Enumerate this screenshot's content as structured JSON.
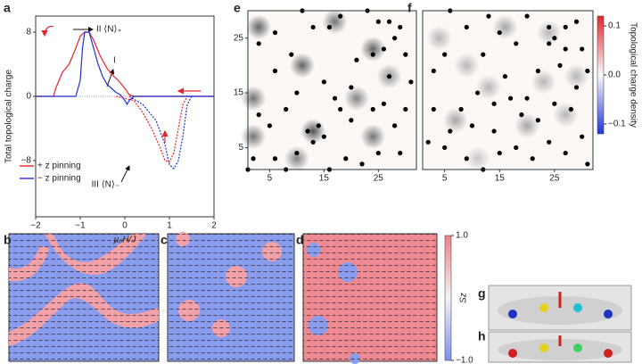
{
  "chart_data": [
    {
      "type": "line",
      "panel": "a",
      "xlabel": "μ₀H/J",
      "ylabel": "Total topological charge",
      "xlim": [
        -2,
        2
      ],
      "xticks": [
        {
          "value": -2,
          "label": "−2"
        },
        {
          "value": -1,
          "label": "−1"
        },
        0,
        1,
        2
      ],
      "ylim": [
        -15,
        10
      ],
      "yticks": [
        {
          "value": -8,
          "label": "−8"
        },
        0,
        8
      ],
      "series": [
        {
          "name": "+ z pinning",
          "color": "#e8242a",
          "x": [
            -2,
            -1.6,
            -1.55,
            -1.4,
            -1.25,
            -1.1,
            -1.0,
            -0.9,
            -0.8,
            -0.7,
            -0.55,
            -0.4,
            -0.25,
            -0.15,
            0,
            0.1,
            0.2,
            2
          ],
          "values": [
            0,
            0,
            1,
            3,
            4,
            6,
            7.5,
            8,
            8,
            7,
            5,
            3.5,
            2.5,
            2,
            1,
            0.2,
            0,
            0
          ],
          "branch_x": [
            -0.2,
            0.2,
            0.4,
            0.6,
            0.8,
            0.9,
            1.0,
            1.1,
            1.2,
            1.3,
            1.4
          ],
          "branch_values": [
            0,
            -0.5,
            -2,
            -4,
            -6.5,
            -8,
            -8.2,
            -7,
            -4,
            -1,
            0
          ]
        },
        {
          "name": "− z pinning",
          "color": "#1f2fd6",
          "x": [
            -2,
            -1.1,
            -1.0,
            -0.95,
            -0.9,
            -0.8,
            -0.7,
            -0.6,
            -0.5,
            -0.4,
            -0.3,
            -0.2,
            -0.1,
            0,
            0.05,
            0.1,
            0.2,
            2
          ],
          "values": [
            0,
            0,
            2,
            6,
            8,
            8,
            6,
            4,
            2.5,
            1.5,
            1,
            0.5,
            0.2,
            -0.5,
            -1,
            -0.5,
            0,
            0
          ],
          "branch_x": [
            0.1,
            0.4,
            0.7,
            0.9,
            1.0,
            1.1,
            1.2,
            1.3,
            1.4,
            1.5
          ],
          "branch_values": [
            0,
            -1,
            -3,
            -6,
            -8.5,
            -9,
            -8,
            -5,
            -1,
            0
          ]
        }
      ],
      "annotations": [
        "II ⟨N⟩₊",
        "I",
        "III ⟨N⟩₋"
      ]
    },
    {
      "type": "scatter",
      "panel": "e",
      "xlim": [
        1,
        32
      ],
      "ylim": [
        1,
        30
      ],
      "xticks": [
        5,
        15,
        25
      ],
      "yticks": [
        5,
        15,
        25
      ],
      "color": "#000000",
      "peak_color": "#e8242a",
      "x": [
        3,
        6,
        11,
        13,
        16,
        18,
        23,
        25,
        27,
        29,
        28,
        30,
        26,
        24,
        21,
        9,
        6,
        15,
        10,
        8,
        3,
        5,
        2,
        6,
        10,
        12,
        14,
        15,
        13,
        18,
        20,
        24,
        26,
        28,
        30,
        31,
        29,
        25,
        22,
        19,
        16,
        8,
        1,
        20,
        17,
        27
      ],
      "values": [
        24,
        26,
        30,
        27,
        27,
        29,
        30,
        28,
        28,
        27,
        25,
        22,
        23,
        22,
        21,
        22,
        19,
        17,
        15,
        12,
        11,
        9,
        3,
        3,
        4,
        8,
        9,
        7,
        6,
        12,
        10,
        12,
        13,
        9,
        12,
        17,
        4,
        4,
        2,
        3,
        1,
        1,
        1,
        16,
        14,
        18
      ],
      "peaks": {
        "x": [
          3,
          2,
          2,
          11,
          13,
          17,
          24,
          21,
          24,
          10,
          27
        ],
        "y": [
          27,
          14,
          7,
          20,
          8,
          28,
          23,
          14,
          7,
          3,
          18
        ],
        "values": [
          0.09,
          0.08,
          0.08,
          0.09,
          0.1,
          0.08,
          0.09,
          0.07,
          0.08,
          0.07,
          0.06
        ]
      }
    },
    {
      "type": "scatter",
      "panel": "f",
      "xlim": [
        1,
        32
      ],
      "ylim": [
        1,
        30
      ],
      "xticks": [
        5,
        15,
        25
      ],
      "color": "#000000",
      "peak_color": "#3a4fe0",
      "x": [
        6,
        9,
        13,
        15,
        18,
        20,
        24,
        25,
        27,
        29,
        30,
        27,
        24,
        12,
        16,
        22,
        26,
        29,
        31,
        28,
        25,
        22,
        19,
        17,
        14,
        11,
        8,
        3,
        6,
        2,
        5,
        9,
        12,
        15,
        18,
        21,
        24,
        27,
        30,
        31,
        10,
        14,
        20,
        3,
        5
      ],
      "values": [
        30,
        27,
        29,
        26,
        24,
        29,
        27,
        25,
        27,
        28,
        23,
        23,
        24,
        22,
        18,
        19,
        20,
        16,
        19,
        12,
        13,
        10,
        11,
        14,
        13,
        15,
        12,
        12,
        8,
        6,
        5,
        3,
        1,
        4,
        5,
        3,
        6,
        4,
        7,
        2,
        9,
        8,
        14,
        19,
        22
      ],
      "peaks": {
        "x": [
          4,
          9,
          16,
          24,
          29,
          7,
          13,
          20,
          27,
          11,
          23
        ],
        "y": [
          25,
          20,
          27,
          26,
          18,
          10,
          16,
          9,
          11,
          3,
          17
        ],
        "values": [
          -0.04,
          -0.04,
          -0.05,
          -0.04,
          -0.04,
          -0.05,
          -0.04,
          -0.05,
          -0.04,
          -0.03,
          -0.04
        ]
      },
      "colorbar": {
        "label": "Topological charge density",
        "lim": [
          -0.12,
          0.12
        ],
        "ticks": [
          0.1,
          {
            "value": 0,
            "label": "0.0"
          },
          {
            "value": -0.1,
            "label": "−0.1"
          }
        ]
      }
    }
  ],
  "panel_labels": [
    "b",
    "c",
    "d",
    "g",
    "h"
  ],
  "spin_colorbar": {
    "label": "Sz",
    "lim": [
      -1,
      1
    ],
    "ticks": [
      {
        "value": 1,
        "label": "1.0"
      },
      {
        "value": -1,
        "label": "−1.0"
      }
    ]
  }
}
